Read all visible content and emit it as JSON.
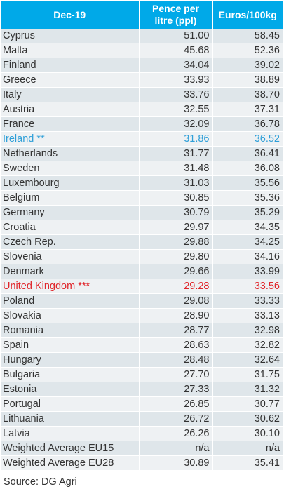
{
  "header": {
    "col1": "Dec-19",
    "col2_line1": "Pence per",
    "col2_line2": "litre (ppl)",
    "col3": "Euros/100kg"
  },
  "rows": [
    {
      "country": "Cyprus",
      "ppl": "51.00",
      "eur": "58.45"
    },
    {
      "country": "Malta",
      "ppl": "45.68",
      "eur": "52.36"
    },
    {
      "country": "Finland",
      "ppl": "34.04",
      "eur": "39.02"
    },
    {
      "country": "Greece",
      "ppl": "33.93",
      "eur": "38.89"
    },
    {
      "country": "Italy",
      "ppl": "33.76",
      "eur": "38.70"
    },
    {
      "country": "Austria",
      "ppl": "32.55",
      "eur": "37.31"
    },
    {
      "country": "France",
      "ppl": "32.09",
      "eur": "36.78"
    },
    {
      "country": "Ireland **",
      "ppl": "31.86",
      "eur": "36.52",
      "highlight": "blue"
    },
    {
      "country": "Netherlands",
      "ppl": "31.77",
      "eur": "36.41"
    },
    {
      "country": "Sweden",
      "ppl": "31.48",
      "eur": "36.08"
    },
    {
      "country": "Luxembourg",
      "ppl": "31.03",
      "eur": "35.56"
    },
    {
      "country": "Belgium",
      "ppl": "30.85",
      "eur": "35.36"
    },
    {
      "country": "Germany",
      "ppl": "30.79",
      "eur": "35.29"
    },
    {
      "country": "Croatia",
      "ppl": "29.97",
      "eur": "34.35"
    },
    {
      "country": "Czech Rep.",
      "ppl": "29.88",
      "eur": "34.25"
    },
    {
      "country": "Slovenia",
      "ppl": "29.80",
      "eur": "34.16"
    },
    {
      "country": "Denmark",
      "ppl": "29.66",
      "eur": "33.99"
    },
    {
      "country": "United Kingdom ***",
      "ppl": "29.28",
      "eur": "33.56",
      "highlight": "red"
    },
    {
      "country": "Poland",
      "ppl": "29.08",
      "eur": "33.33"
    },
    {
      "country": "Slovakia",
      "ppl": "28.90",
      "eur": "33.13"
    },
    {
      "country": "Romania",
      "ppl": "28.77",
      "eur": "32.98"
    },
    {
      "country": "Spain",
      "ppl": "28.63",
      "eur": "32.82"
    },
    {
      "country": "Hungary",
      "ppl": "28.48",
      "eur": "32.64"
    },
    {
      "country": "Bulgaria",
      "ppl": "27.70",
      "eur": "31.75"
    },
    {
      "country": "Estonia",
      "ppl": "27.33",
      "eur": "31.32"
    },
    {
      "country": "Portugal",
      "ppl": "26.85",
      "eur": "30.77"
    },
    {
      "country": "Lithuania",
      "ppl": "26.72",
      "eur": "30.62"
    },
    {
      "country": "Latvia",
      "ppl": "26.26",
      "eur": "30.10"
    },
    {
      "country": "Weighted Average EU15",
      "ppl": "n/a",
      "eur": "n/a"
    },
    {
      "country": "Weighted Average EU28",
      "ppl": "30.89",
      "eur": "35.41"
    }
  ],
  "source": "Source: DG Agri",
  "colors": {
    "header_bg": "#00a9e8",
    "row_bg": "#dfe6ea",
    "row_bg_alt": "#eef1f3",
    "highlight_blue": "#2e9fd8",
    "highlight_red": "#e0262b"
  }
}
